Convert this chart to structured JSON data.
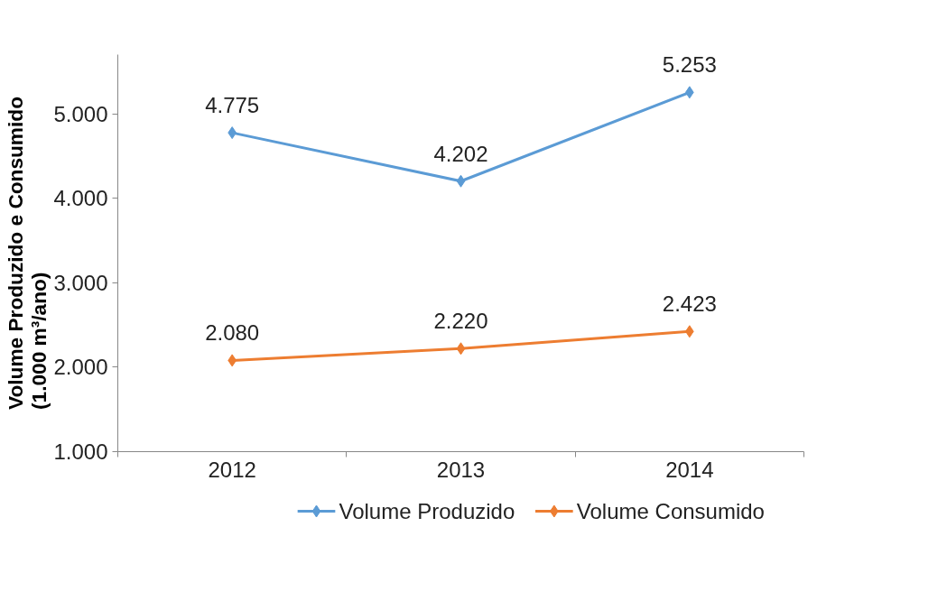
{
  "chart_data": {
    "type": "line",
    "ylabel": "Volume Produzido e Consumido\n(1.000 m³/ano)",
    "categories": [
      "2012",
      "2013",
      "2014"
    ],
    "series": [
      {
        "name": "Volume Produzido",
        "color": "#5b9bd5",
        "values": [
          4775,
          4202,
          5253
        ],
        "value_labels": [
          "4.775",
          "4.202",
          "5.253"
        ]
      },
      {
        "name": "Volume Consumido",
        "color": "#ed7d31",
        "values": [
          2080,
          2220,
          2423
        ],
        "value_labels": [
          "2.080",
          "2.220",
          "2.423"
        ]
      }
    ],
    "ylim": [
      1000,
      5700
    ],
    "yticks": [
      {
        "value": 1000,
        "label": "1.000"
      },
      {
        "value": 2000,
        "label": "2.000"
      },
      {
        "value": 3000,
        "label": "3.000"
      },
      {
        "value": 4000,
        "label": "4.000"
      },
      {
        "value": 5000,
        "label": "5.000"
      }
    ],
    "grid": false,
    "legend": "bottom",
    "marker": "diamond",
    "line_style": "solid"
  }
}
